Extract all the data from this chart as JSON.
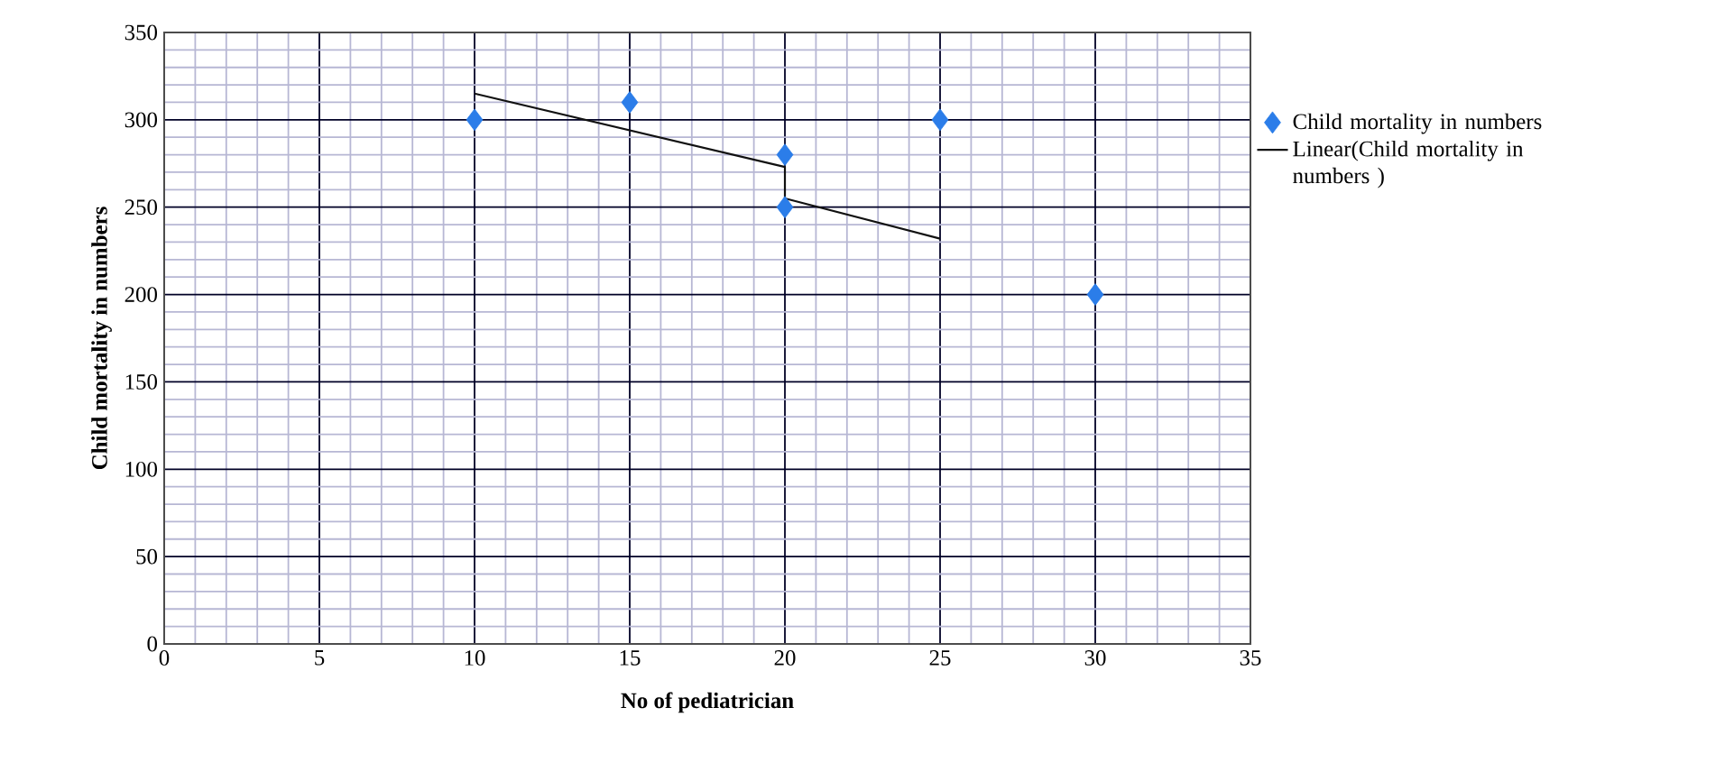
{
  "chart_data": {
    "type": "scatter",
    "xlabel": "**No of pediatrician**",
    "ylabel": "**Child mortality in numbers**",
    "xlim": [
      0,
      35
    ],
    "xticks": [
      0,
      5,
      10,
      15,
      20,
      25,
      30,
      35
    ],
    "ylim": [
      0,
      350
    ],
    "yticks": [
      0,
      50,
      100,
      150,
      200,
      250,
      300,
      350
    ],
    "grid": true,
    "legend": "right",
    "series": [
      {
        "name": "Child mortality in numbers",
        "color": "#2b7de9",
        "marker": "diamond",
        "x": [
          10,
          15,
          20,
          20,
          25,
          30
        ],
        "values": [
          300,
          310,
          280,
          250,
          300,
          200
        ]
      },
      {
        "name": "Linear(Child mortality in numbers )",
        "type": "line",
        "marker": "none",
        "color": "#111111",
        "x": [
          10,
          20,
          20,
          25
        ],
        "values": [
          315,
          273,
          255,
          232
        ]
      }
    ]
  }
}
